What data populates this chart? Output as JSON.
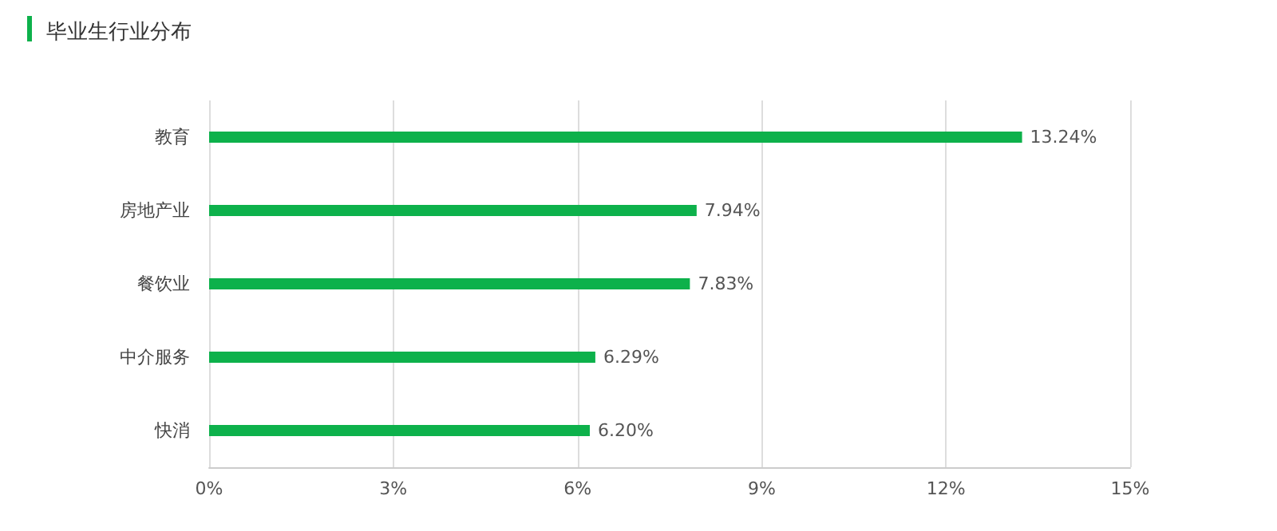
{
  "chart_data": {
    "type": "bar",
    "orientation": "horizontal",
    "title": "毕业生行业分布",
    "categories": [
      "教育",
      "房地产业",
      "餐饮业",
      "中介服务",
      "快消"
    ],
    "values": [
      13.24,
      7.94,
      7.83,
      6.29,
      6.2
    ],
    "value_labels": [
      "13.24%",
      "7.94%",
      "7.83%",
      "6.29%",
      "6.20%"
    ],
    "color": "#0db14b",
    "xlim": [
      0,
      15
    ],
    "xticks": [
      {
        "value": 0,
        "label": "0%"
      },
      {
        "value": 3,
        "label": "3%"
      },
      {
        "value": 6,
        "label": "6%"
      },
      {
        "value": 9,
        "label": "9%"
      },
      {
        "value": 12,
        "label": "12%"
      },
      {
        "value": 15,
        "label": "15%"
      }
    ],
    "grid": "x"
  }
}
